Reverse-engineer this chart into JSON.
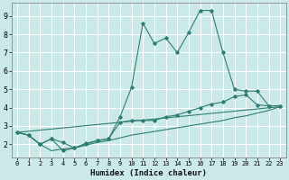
{
  "xlabel": "Humidex (Indice chaleur)",
  "bg_color": "#cce9e9",
  "grid_color": "#ffffff",
  "line_color": "#2e7d72",
  "xlim": [
    -0.5,
    23.5
  ],
  "ylim": [
    1.3,
    9.7
  ],
  "yticks": [
    2,
    3,
    4,
    5,
    6,
    7,
    8,
    9
  ],
  "xticks": [
    0,
    1,
    2,
    3,
    4,
    5,
    6,
    7,
    8,
    9,
    10,
    11,
    12,
    13,
    14,
    15,
    16,
    17,
    18,
    19,
    20,
    21,
    22,
    23
  ],
  "line1_x": [
    0,
    1,
    2,
    3,
    4,
    5,
    6,
    7,
    8,
    9,
    10,
    11,
    12,
    13,
    14,
    15,
    16,
    17,
    18,
    19,
    20,
    21,
    22,
    23
  ],
  "line1_y": [
    2.65,
    2.5,
    2.0,
    1.65,
    1.75,
    1.8,
    1.95,
    2.1,
    2.2,
    2.35,
    2.5,
    2.6,
    2.7,
    2.8,
    2.9,
    3.0,
    3.1,
    3.2,
    3.3,
    3.45,
    3.55,
    3.7,
    3.85,
    4.05
  ],
  "line2_x": [
    0,
    1,
    2,
    3,
    4,
    5,
    6,
    7,
    8,
    9,
    10,
    11,
    12,
    13,
    14,
    15,
    16,
    17,
    18,
    19,
    20,
    21,
    22,
    23
  ],
  "line2_y": [
    2.65,
    2.5,
    2.0,
    2.3,
    1.65,
    1.8,
    2.0,
    2.2,
    2.3,
    3.5,
    5.1,
    8.6,
    7.5,
    7.8,
    7.0,
    8.1,
    9.3,
    9.3,
    7.0,
    5.0,
    4.9,
    4.9,
    4.1,
    4.1
  ],
  "line3_x": [
    0,
    1,
    2,
    3,
    4,
    5,
    6,
    7,
    8,
    9,
    10,
    11,
    12,
    13,
    14,
    15,
    16,
    17,
    18,
    19,
    20,
    21,
    22,
    23
  ],
  "line3_y": [
    2.65,
    2.5,
    2.0,
    2.3,
    2.1,
    1.8,
    2.05,
    2.2,
    2.3,
    3.2,
    3.3,
    3.3,
    3.3,
    3.5,
    3.6,
    3.8,
    4.0,
    4.2,
    4.3,
    4.6,
    4.7,
    4.15,
    4.1,
    4.1
  ],
  "line4_x": [
    0,
    23
  ],
  "line4_y": [
    2.65,
    4.05
  ]
}
